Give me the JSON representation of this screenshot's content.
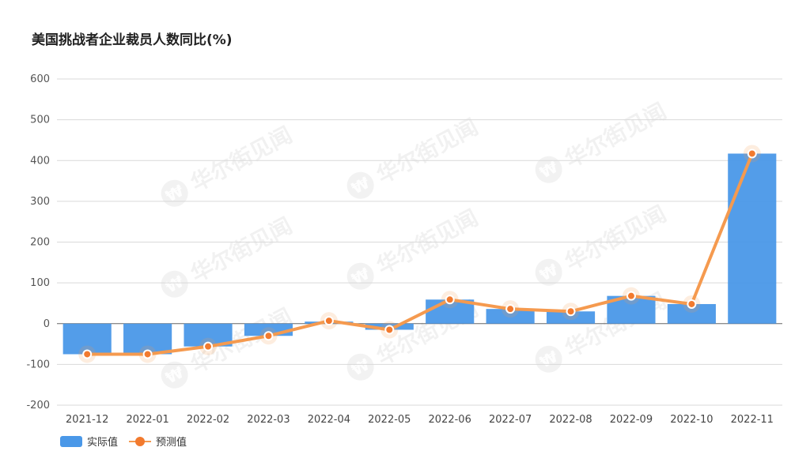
{
  "chart_data": {
    "type": "bar",
    "title": "美国挑战者企业裁员人数同比(%)",
    "categories": [
      "2021-12",
      "2022-01",
      "2022-02",
      "2022-03",
      "2022-04",
      "2022-05",
      "2022-06",
      "2022-07",
      "2022-08",
      "2022-09",
      "2022-10",
      "2022-11"
    ],
    "series": [
      {
        "name": "实际值",
        "type": "bar",
        "color": "#4a98e8",
        "values": [
          -75,
          -75,
          -56,
          -30,
          5,
          -15,
          59,
          36,
          30,
          68,
          48,
          417
        ]
      },
      {
        "name": "预测值",
        "type": "line",
        "color": "#f59a4f",
        "values": [
          -75,
          -75,
          -56,
          -30,
          7,
          -15,
          59,
          36,
          30,
          68,
          48,
          417
        ]
      }
    ],
    "ylim": [
      -200,
      600
    ],
    "yticks": [
      -200,
      -100,
      0,
      100,
      200,
      300,
      400,
      500,
      600
    ],
    "xlabel": "",
    "ylabel": "",
    "grid": true,
    "legend": "bottom-left"
  },
  "legend": {
    "actual": "实际值",
    "forecast": "预测值"
  },
  "watermark": {
    "text": "华尔街见闻",
    "logo": "₩"
  }
}
